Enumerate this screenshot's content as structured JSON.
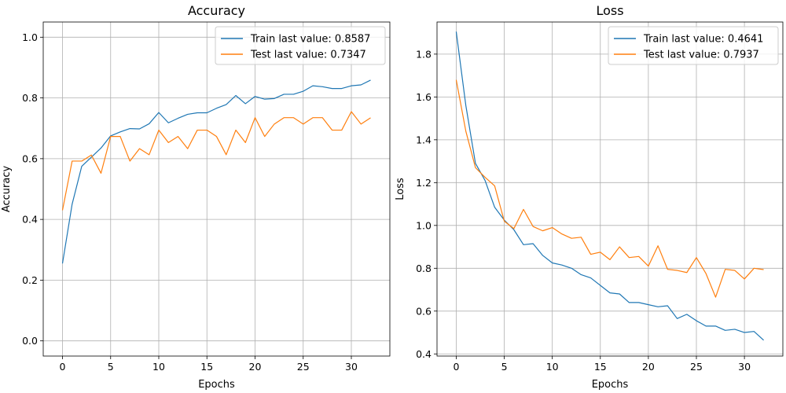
{
  "chart_data": [
    {
      "type": "line",
      "title": "Accuracy",
      "xlabel": "Epochs",
      "ylabel": "Accuracy",
      "xlim": [
        -2,
        34
      ],
      "ylim": [
        -0.05,
        1.05
      ],
      "xticks": [
        0,
        5,
        10,
        15,
        20,
        25,
        30
      ],
      "yticks": [
        0.0,
        0.2,
        0.4,
        0.6,
        0.8,
        1.0
      ],
      "ytick_decimals": 1,
      "grid": true,
      "legend": "top-right",
      "x": [
        0,
        1,
        2,
        3,
        4,
        5,
        6,
        7,
        8,
        9,
        10,
        11,
        12,
        13,
        14,
        15,
        16,
        17,
        18,
        19,
        20,
        21,
        22,
        23,
        24,
        25,
        26,
        27,
        28,
        29,
        30,
        31,
        32
      ],
      "series": [
        {
          "name": "Train last value: 0.8587",
          "color": "#1f77b4",
          "values": [
            0.255,
            0.45,
            0.575,
            0.605,
            0.635,
            0.675,
            0.688,
            0.699,
            0.698,
            0.715,
            0.752,
            0.718,
            0.733,
            0.746,
            0.751,
            0.751,
            0.766,
            0.778,
            0.808,
            0.781,
            0.805,
            0.796,
            0.798,
            0.812,
            0.812,
            0.822,
            0.84,
            0.837,
            0.831,
            0.831,
            0.84,
            0.843,
            0.8587
          ]
        },
        {
          "name": "Test last value: 0.7347",
          "color": "#ff7f0e",
          "values": [
            0.43,
            0.592,
            0.592,
            0.612,
            0.552,
            0.673,
            0.673,
            0.592,
            0.633,
            0.613,
            0.694,
            0.653,
            0.673,
            0.633,
            0.694,
            0.694,
            0.673,
            0.613,
            0.694,
            0.653,
            0.735,
            0.673,
            0.714,
            0.735,
            0.735,
            0.714,
            0.735,
            0.735,
            0.694,
            0.694,
            0.755,
            0.714,
            0.7347
          ]
        }
      ]
    },
    {
      "type": "line",
      "title": "Loss",
      "xlabel": "Epochs",
      "ylabel": "Loss",
      "xlim": [
        -2,
        34
      ],
      "ylim": [
        0.39,
        1.95
      ],
      "xticks": [
        0,
        5,
        10,
        15,
        20,
        25,
        30
      ],
      "yticks": [
        0.4,
        0.6,
        0.8,
        1.0,
        1.2,
        1.4,
        1.6,
        1.8
      ],
      "ytick_decimals": 1,
      "grid": true,
      "legend": "top-right",
      "x": [
        0,
        1,
        2,
        3,
        4,
        5,
        6,
        7,
        8,
        9,
        10,
        11,
        12,
        13,
        14,
        15,
        16,
        17,
        18,
        19,
        20,
        21,
        22,
        23,
        24,
        25,
        26,
        27,
        28,
        29,
        30,
        31,
        32
      ],
      "series": [
        {
          "name": "Train last value: 0.4641",
          "color": "#1f77b4",
          "values": [
            1.905,
            1.56,
            1.29,
            1.21,
            1.085,
            1.025,
            0.98,
            0.91,
            0.915,
            0.86,
            0.825,
            0.815,
            0.8,
            0.77,
            0.755,
            0.72,
            0.685,
            0.68,
            0.64,
            0.64,
            0.63,
            0.62,
            0.625,
            0.565,
            0.585,
            0.555,
            0.53,
            0.53,
            0.51,
            0.515,
            0.5,
            0.505,
            0.4641
          ]
        },
        {
          "name": "Test last value: 0.7937",
          "color": "#ff7f0e",
          "values": [
            1.68,
            1.44,
            1.27,
            1.225,
            1.185,
            1.02,
            0.985,
            1.075,
            0.995,
            0.975,
            0.99,
            0.96,
            0.94,
            0.945,
            0.865,
            0.875,
            0.84,
            0.9,
            0.85,
            0.855,
            0.81,
            0.905,
            0.795,
            0.79,
            0.78,
            0.85,
            0.775,
            0.665,
            0.795,
            0.79,
            0.75,
            0.8,
            0.7937
          ]
        }
      ]
    }
  ]
}
